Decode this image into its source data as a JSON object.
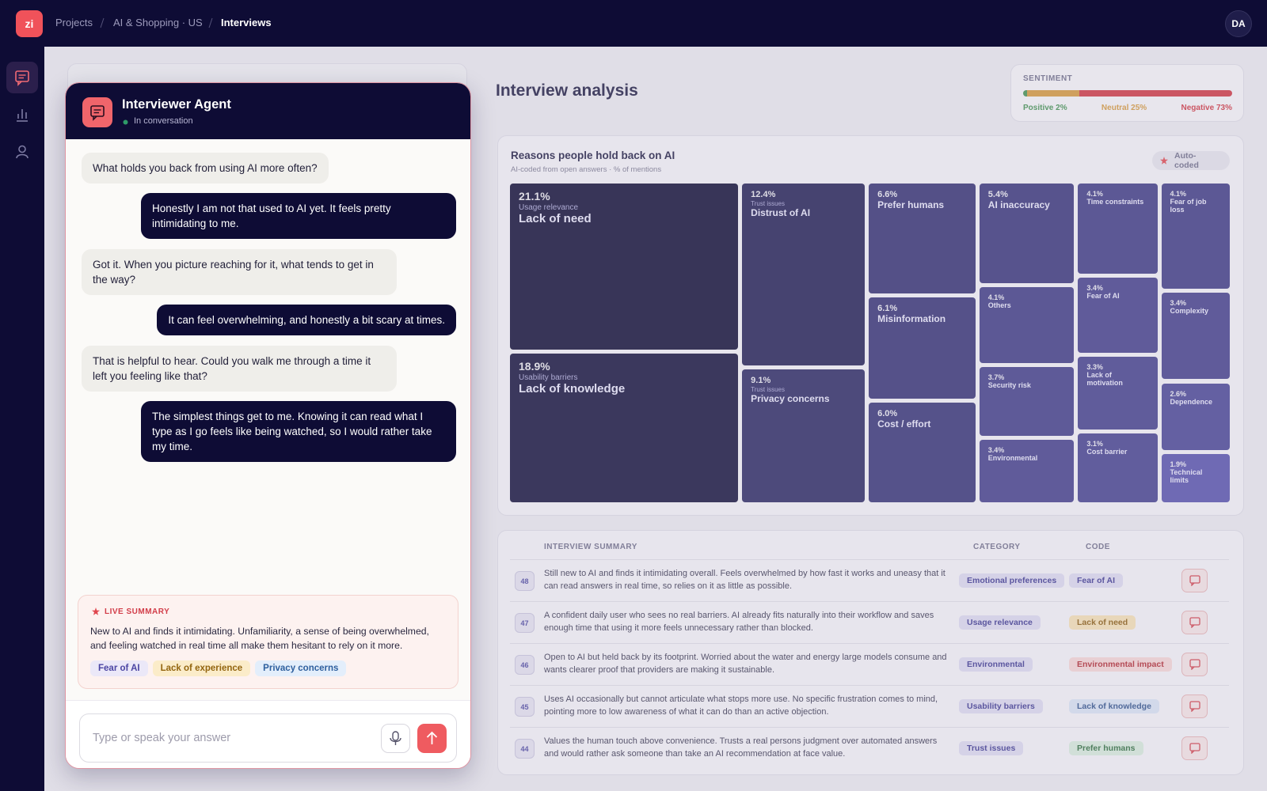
{
  "topbar": {
    "logo": "zi",
    "breadcrumb": [
      "Projects",
      "AI & Shopping · US",
      "Interviews"
    ],
    "avatar": "DA"
  },
  "chat": {
    "title": "Interviewer Agent",
    "status": "In conversation",
    "messages": [
      {
        "role": "agent",
        "text": "What holds you back from using AI more often?"
      },
      {
        "role": "user",
        "text": "Honestly I am not that used to AI yet. It feels pretty intimidating to me."
      },
      {
        "role": "agent",
        "text": "Got it. When you picture reaching for it, what tends to get in the way?"
      },
      {
        "role": "user",
        "text": "It can feel overwhelming, and honestly a bit scary at times."
      },
      {
        "role": "agent",
        "text": "That is helpful to hear. Could you walk me through a time it left you feeling like that?"
      },
      {
        "role": "user",
        "text": "The simplest things get to me. Knowing it can read what I type as I go feels like being watched, so I would rather take my time."
      }
    ],
    "live_summary": {
      "label": "LIVE SUMMARY",
      "text": "New to AI and finds it intimidating. Unfamiliarity, a sense of being overwhelmed, and feeling watched in real time all make them hesitant to rely on it more.",
      "tags": [
        "Fear of AI",
        "Lack of experience",
        "Privacy concerns"
      ]
    },
    "input_placeholder": "Type or speak your answer"
  },
  "analysis_title": "Interview analysis",
  "sentiment": {
    "label": "SENTIMENT",
    "segments": [
      {
        "name": "Positive",
        "value": 2,
        "label": "Positive 2%",
        "color": "#3f8f4e"
      },
      {
        "name": "Neutral",
        "value": 25,
        "label": "Neutral 25%",
        "color": "#d4973a"
      },
      {
        "name": "Negative",
        "value": 73,
        "label": "Negative 73%",
        "color": "#cf3440"
      }
    ]
  },
  "chart_data": {
    "type": "treemap",
    "title": "Reasons people hold back on AI",
    "subtitle": "AI-coded from open answers · % of mentions",
    "badge": "Auto-coded",
    "categories": [
      "Lack of need",
      "Lack of knowledge",
      "Distrust of AI",
      "Privacy concerns",
      "Prefer humans",
      "Misinformation",
      "Cost / effort",
      "AI inaccuracy",
      "Others",
      "Security risk",
      "Environmental",
      "Time constraints",
      "Fear of AI",
      "Lack of motivation",
      "Cost barrier",
      "Fear of job loss",
      "Complexity",
      "Dependence",
      "Technical limits"
    ],
    "groups": [
      "Usage relevance",
      "Usability barriers",
      "Trust issues",
      "Trust issues",
      null,
      null,
      null,
      null,
      null,
      null,
      null,
      null,
      null,
      null,
      null,
      null,
      null,
      null,
      null
    ],
    "values": [
      21.1,
      18.9,
      12.4,
      9.1,
      6.6,
      6.1,
      6.0,
      5.4,
      4.1,
      3.7,
      3.4,
      4.1,
      3.4,
      3.3,
      3.1,
      4.1,
      3.4,
      2.6,
      1.9
    ],
    "value_labels": [
      "21.1%",
      "18.9%",
      "12.4%",
      "9.1%",
      "6.6%",
      "6.1%",
      "6.0%",
      "5.4%",
      "4.1%",
      "3.7%",
      "3.4%",
      "4.1%",
      "3.4%",
      "3.3%",
      "3.1%",
      "4.1%",
      "3.4%",
      "2.6%",
      "1.9%"
    ]
  },
  "table": {
    "headers": [
      "INTERVIEW SUMMARY",
      "CATEGORY",
      "CODE"
    ],
    "rows": [
      {
        "id": 48,
        "summary": "Still new to AI and finds it intimidating overall. Feels overwhelmed by how fast it works and uneasy that it can read answers in real time, so relies on it as little as possible.",
        "category": "Emotional preferences",
        "code": "Fear of AI"
      },
      {
        "id": 47,
        "summary": "A confident daily user who sees no real barriers. AI already fits naturally into their workflow and saves enough time that using it more feels unnecessary rather than blocked.",
        "category": "Usage relevance",
        "code": "Lack of need"
      },
      {
        "id": 46,
        "summary": "Open to AI but held back by its footprint. Worried about the water and energy large models consume and wants clearer proof that providers are making it sustainable.",
        "category": "Environmental",
        "code": "Environmental impact"
      },
      {
        "id": 45,
        "summary": "Uses AI occasionally but cannot articulate what stops more use. No specific frustration comes to mind, pointing more to low awareness of what it can do than an active objection.",
        "category": "Usability barriers",
        "code": "Lack of knowledge"
      },
      {
        "id": 44,
        "summary": "Values the human touch above convenience. Trusts a real persons judgment over automated answers and would rather ask someone than take an AI recommendation at face value.",
        "category": "Trust issues",
        "code": "Prefer humans"
      }
    ]
  }
}
